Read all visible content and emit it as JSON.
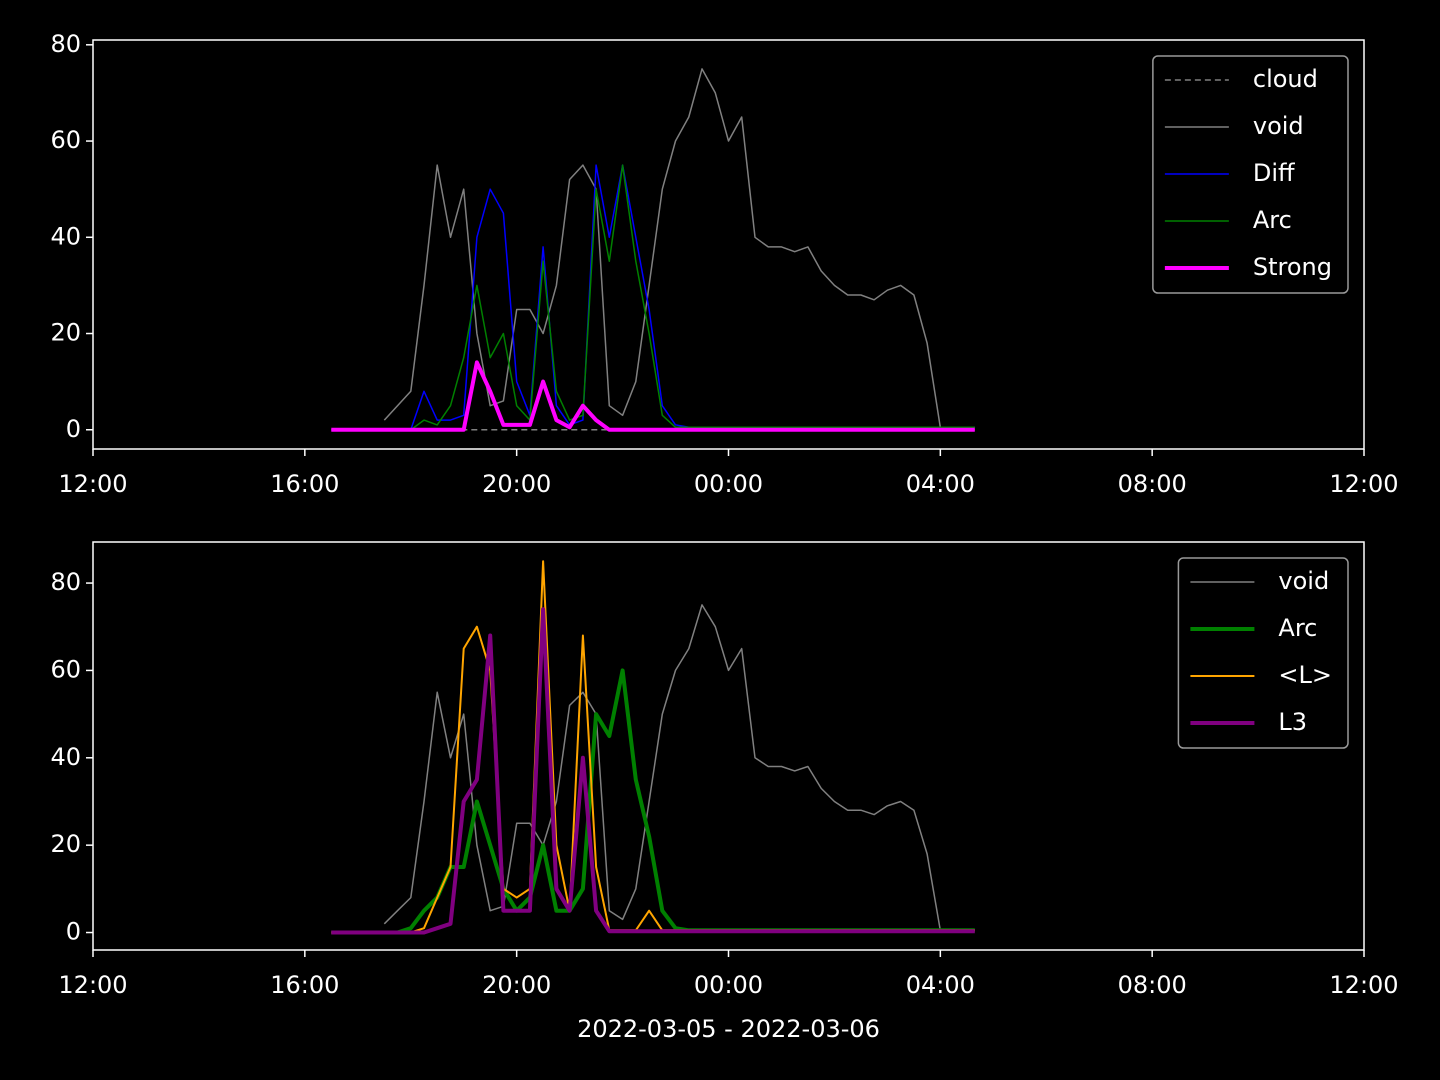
{
  "chart_data": [
    {
      "type": "line",
      "x": [
        16.5,
        16.75,
        17,
        17.25,
        17.5,
        17.75,
        18,
        18.25,
        18.5,
        18.75,
        19,
        19.25,
        19.5,
        19.75,
        20,
        20.25,
        20.5,
        20.75,
        21,
        21.25,
        21.5,
        21.75,
        22,
        22.25,
        22.5,
        22.75,
        23,
        23.25,
        23.5,
        23.75,
        24,
        24.25,
        24.5,
        24.75,
        25,
        25.25,
        25.5,
        25.75,
        26,
        26.25,
        26.5,
        26.75,
        27,
        27.25,
        27.5,
        27.75,
        28,
        28.25,
        28.5,
        28.65
      ],
      "xlim": [
        12,
        36
      ],
      "xticks": [
        {
          "value": 12,
          "label": "12:00"
        },
        {
          "value": 16,
          "label": "16:00"
        },
        {
          "value": 20,
          "label": "20:00"
        },
        {
          "value": 24,
          "label": "00:00"
        },
        {
          "value": 28,
          "label": "04:00"
        },
        {
          "value": 32,
          "label": "08:00"
        },
        {
          "value": 36,
          "label": "12:00"
        }
      ],
      "ylim": [
        -4,
        81
      ],
      "yticks": [
        0,
        20,
        40,
        60,
        80
      ],
      "legend": "upper right",
      "series": [
        {
          "name": "cloud",
          "color": "#808080",
          "dash": true,
          "linewidth": 1.5,
          "values": [
            0,
            0,
            0,
            0,
            0,
            0,
            0,
            0,
            0,
            0,
            0,
            0,
            0,
            0,
            0,
            0,
            0,
            0,
            0,
            0,
            0,
            0,
            0,
            0,
            0,
            0,
            0,
            0,
            0,
            0,
            0,
            0,
            0,
            0,
            0,
            0,
            0,
            0,
            0,
            0,
            0,
            0,
            0,
            0,
            0,
            0,
            0,
            0,
            0,
            0
          ]
        },
        {
          "name": "void",
          "color": "#808080",
          "linewidth": 1.5,
          "values": [
            null,
            null,
            null,
            null,
            2,
            5,
            8,
            30,
            55,
            40,
            50,
            20,
            5,
            6,
            25,
            25,
            20,
            30,
            52,
            55,
            50,
            5,
            3,
            10,
            30,
            50,
            60,
            65,
            75,
            70,
            60,
            65,
            40,
            38,
            38,
            37,
            38,
            33,
            30,
            28,
            28,
            27,
            29,
            30,
            28,
            18,
            0.5,
            0.5,
            0.5,
            0.5
          ]
        },
        {
          "name": "Diff",
          "color": "#0000ff",
          "linewidth": 1.5,
          "values": [
            0,
            0,
            0,
            0,
            0,
            0,
            0,
            8,
            2,
            2,
            3,
            40,
            50,
            45,
            10,
            3,
            38,
            5,
            1,
            2,
            55,
            40,
            55,
            40,
            25,
            5,
            1,
            0.5,
            0.5,
            0.5,
            0.5,
            0.5,
            0.5,
            0.5,
            0.5,
            0.5,
            0.5,
            0.5,
            0.5,
            0.5,
            0.5,
            0.5,
            0.5,
            0.5,
            0.5,
            0.5,
            0.5,
            0.5,
            0.5,
            0.5
          ]
        },
        {
          "name": "Arc",
          "color": "#008000",
          "linewidth": 1.5,
          "values": [
            0,
            0,
            0,
            0,
            0,
            0,
            0,
            2,
            1,
            5,
            15,
            30,
            15,
            20,
            5,
            2,
            35,
            8,
            2,
            3,
            50,
            35,
            55,
            35,
            20,
            3,
            0.5,
            0.5,
            0.5,
            0.5,
            0.5,
            0.5,
            0.5,
            0.5,
            0.5,
            0.5,
            0.5,
            0.5,
            0.5,
            0.5,
            0.5,
            0.5,
            0.5,
            0.5,
            0.5,
            0.5,
            0.5,
            0.5,
            0.5,
            0.5
          ]
        },
        {
          "name": "Strong",
          "color": "#ff00ff",
          "linewidth": 4,
          "values": [
            0,
            0,
            0,
            0,
            0,
            0,
            0,
            0,
            0,
            0,
            0,
            14,
            8,
            1,
            1,
            1,
            10,
            2,
            0.5,
            5,
            2,
            0,
            0,
            0,
            0,
            0,
            0,
            0,
            0,
            0,
            0,
            0,
            0,
            0,
            0,
            0,
            0,
            0,
            0,
            0,
            0,
            0,
            0,
            0,
            0,
            0,
            0,
            0,
            0,
            0
          ]
        }
      ]
    },
    {
      "type": "line",
      "x": [
        16.5,
        16.75,
        17,
        17.25,
        17.5,
        17.75,
        18,
        18.25,
        18.5,
        18.75,
        19,
        19.25,
        19.5,
        19.75,
        20,
        20.25,
        20.5,
        20.75,
        21,
        21.25,
        21.5,
        21.75,
        22,
        22.25,
        22.5,
        22.75,
        23,
        23.25,
        23.5,
        23.75,
        24,
        24.25,
        24.5,
        24.75,
        25,
        25.25,
        25.5,
        25.75,
        26,
        26.25,
        26.5,
        26.75,
        27,
        27.25,
        27.5,
        27.75,
        28,
        28.25,
        28.5,
        28.65
      ],
      "xlim": [
        12,
        36
      ],
      "xticks": [
        {
          "value": 12,
          "label": "12:00"
        },
        {
          "value": 16,
          "label": "16:00"
        },
        {
          "value": 20,
          "label": "20:00"
        },
        {
          "value": 24,
          "label": "00:00"
        },
        {
          "value": 28,
          "label": "04:00"
        },
        {
          "value": 32,
          "label": "08:00"
        },
        {
          "value": 36,
          "label": "12:00"
        }
      ],
      "xlabel": "2022-03-05 - 2022-03-06",
      "ylim": [
        -4,
        89.4
      ],
      "yticks": [
        0,
        20,
        40,
        60,
        80
      ],
      "legend": "upper right",
      "series": [
        {
          "name": "void",
          "color": "#808080",
          "linewidth": 1.5,
          "values": [
            null,
            null,
            null,
            null,
            2,
            5,
            8,
            30,
            55,
            40,
            50,
            20,
            5,
            6,
            25,
            25,
            20,
            30,
            52,
            55,
            50,
            5,
            3,
            10,
            30,
            50,
            60,
            65,
            75,
            70,
            60,
            65,
            40,
            38,
            38,
            37,
            38,
            33,
            30,
            28,
            28,
            27,
            29,
            30,
            28,
            18,
            0.5,
            0.5,
            0.5,
            0.5
          ]
        },
        {
          "name": "Arc",
          "color": "#008000",
          "linewidth": 4,
          "values": [
            0,
            0,
            0,
            0,
            0,
            0,
            1,
            5,
            8,
            15,
            15,
            30,
            20,
            10,
            5,
            8,
            20,
            5,
            5,
            10,
            50,
            45,
            60,
            35,
            22,
            5,
            1,
            0.5,
            0.5,
            0.5,
            0.5,
            0.5,
            0.5,
            0.5,
            0.5,
            0.5,
            0.5,
            0.5,
            0.5,
            0.5,
            0.5,
            0.5,
            0.5,
            0.5,
            0.5,
            0.5,
            0.5,
            0.5,
            0.5,
            0.5
          ]
        },
        {
          "name": "<L>",
          "color": "#ffa500",
          "linewidth": 2,
          "values": [
            0,
            0,
            0,
            0,
            0,
            0,
            0,
            1,
            8,
            15,
            65,
            70,
            60,
            10,
            8,
            10,
            85,
            20,
            5,
            68,
            15,
            0.5,
            0.5,
            0.5,
            5,
            0.5,
            0.5,
            0.5,
            0.5,
            0.5,
            0.5,
            0.5,
            0.5,
            0.5,
            0.5,
            0.5,
            0.5,
            0.5,
            0.5,
            0.5,
            0.5,
            0.5,
            0.5,
            0.5,
            0.5,
            0.5,
            0.5,
            0.5,
            0.5,
            0.5
          ]
        },
        {
          "name": "L3",
          "color": "#800080",
          "linewidth": 4,
          "values": [
            0,
            0,
            0,
            0,
            0,
            0,
            0,
            0,
            1,
            2,
            30,
            35,
            68,
            5,
            5,
            5,
            74,
            10,
            5,
            40,
            5,
            0.3,
            0.3,
            0.3,
            0.3,
            0.3,
            0.3,
            0.3,
            0.3,
            0.3,
            0.3,
            0.3,
            0.3,
            0.3,
            0.3,
            0.3,
            0.3,
            0.3,
            0.3,
            0.3,
            0.3,
            0.3,
            0.3,
            0.3,
            0.3,
            0.3,
            0.3,
            0.3,
            0.3,
            0.3
          ]
        }
      ]
    }
  ]
}
